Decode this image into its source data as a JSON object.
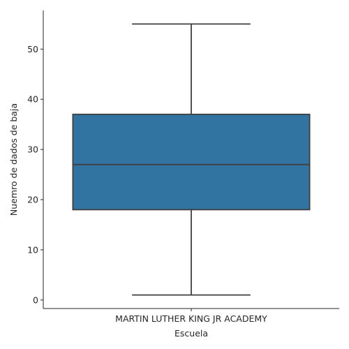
{
  "chart_data": {
    "type": "box",
    "xlabel": "Escuela",
    "ylabel": "Nuemro de dados de baja",
    "categories": [
      "MARTIN LUTHER KING JR ACADEMY"
    ],
    "boxes": [
      {
        "category": "MARTIN LUTHER KING JR ACADEMY",
        "min": 1,
        "q1": 18,
        "median": 27,
        "q3": 37,
        "max": 55
      }
    ],
    "yticks": [
      0,
      10,
      20,
      30,
      40,
      50
    ],
    "ylim": [
      -1.7,
      57.7
    ],
    "box_color": "#3274a1",
    "line_color": "#3f3f3f",
    "grid": false,
    "legend": "none"
  }
}
